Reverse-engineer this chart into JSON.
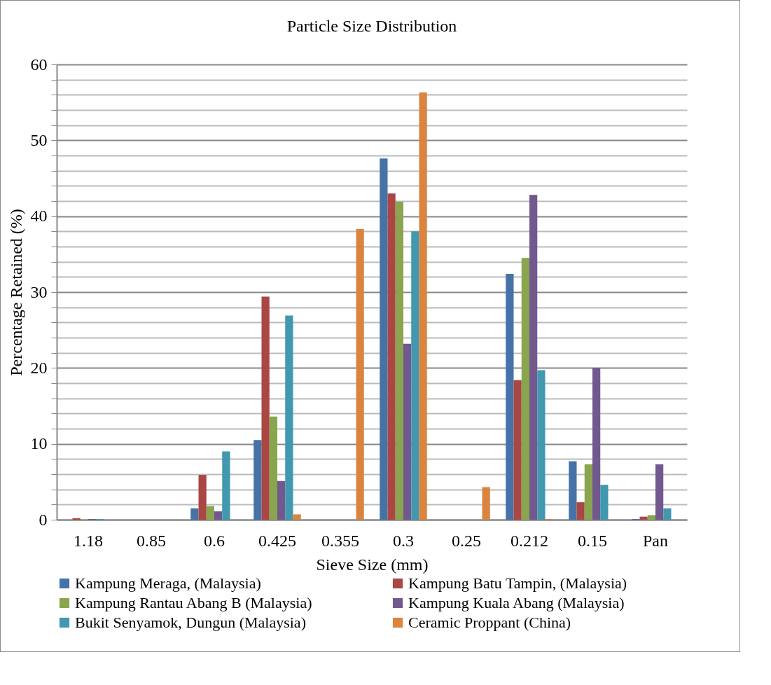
{
  "chart_data": {
    "type": "bar",
    "title": "Particle Size Distribution",
    "xlabel": "Sieve Size (mm)",
    "ylabel": "Percentage Retained (%)",
    "categories": [
      "1.18",
      "0.85",
      "0.6",
      "0.425",
      "0.355",
      "0.3",
      "0.25",
      "0.212",
      "0.15",
      "Pan"
    ],
    "series": [
      {
        "name": "Kampung Meraga, (Malaysia)",
        "color": "#4572a7",
        "values": [
          0,
          0,
          1.5,
          10.5,
          0,
          47.6,
          0,
          32.4,
          7.7,
          0.1
        ]
      },
      {
        "name": "Kampung Batu Tampin, (Malaysia)",
        "color": "#aa4643",
        "values": [
          0.2,
          0,
          5.9,
          29.4,
          0,
          43.0,
          0,
          18.4,
          2.3,
          0.4
        ]
      },
      {
        "name": "Kampung Rantau Abang B (Malaysia)",
        "color": "#89a54e",
        "values": [
          0,
          0,
          1.8,
          13.6,
          0,
          41.9,
          0,
          34.5,
          7.3,
          0.6
        ]
      },
      {
        "name": "Kampung Kuala Abang (Malaysia)",
        "color": "#71588f",
        "values": [
          0.1,
          0,
          1.1,
          5.1,
          0,
          23.2,
          0,
          42.8,
          20.0,
          7.3
        ]
      },
      {
        "name": "Bukit Senyamok, Dungun (Malaysia)",
        "color": "#4198af",
        "values": [
          0.1,
          0,
          9.0,
          26.9,
          0,
          38.0,
          0,
          19.7,
          4.6,
          1.5
        ]
      },
      {
        "name": "Ceramic Proppant (China)",
        "color": "#db843d",
        "values": [
          0,
          0,
          0,
          0.7,
          38.3,
          56.3,
          4.3,
          0.1,
          0,
          0
        ]
      }
    ],
    "ylim": [
      0,
      60
    ],
    "yticks": [
      0,
      {
        "value": 2,
        "label": null
      },
      {
        "value": 4,
        "label": null
      },
      {
        "value": 6,
        "label": null
      },
      {
        "value": 8,
        "label": null
      },
      10,
      {
        "value": 12,
        "label": null
      },
      {
        "value": 14,
        "label": null
      },
      {
        "value": 16,
        "label": null
      },
      {
        "value": 18,
        "label": null
      },
      20,
      {
        "value": 22,
        "label": null
      },
      {
        "value": 24,
        "label": null
      },
      {
        "value": 26,
        "label": null
      },
      {
        "value": 28,
        "label": null
      },
      30,
      {
        "value": 32,
        "label": null
      },
      {
        "value": 34,
        "label": null
      },
      {
        "value": 36,
        "label": null
      },
      {
        "value": 38,
        "label": null
      },
      40,
      {
        "value": 42,
        "label": null
      },
      {
        "value": 44,
        "label": null
      },
      {
        "value": 46,
        "label": null
      },
      {
        "value": 48,
        "label": null
      },
      50,
      {
        "value": 52,
        "label": null
      },
      {
        "value": 54,
        "label": null
      },
      {
        "value": 56,
        "label": null
      },
      {
        "value": 58,
        "label": null
      },
      60
    ],
    "grid": true,
    "legend": "bottom"
  }
}
